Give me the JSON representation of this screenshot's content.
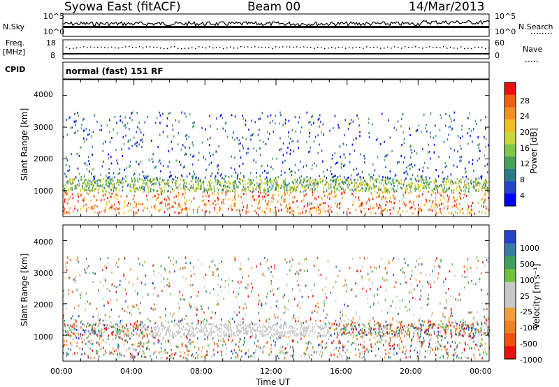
{
  "header": {
    "station": "Syowa East (fitACF)",
    "beam": "Beam 00",
    "date": "14/Mar/2013"
  },
  "strip_labels": {
    "nsky": "N.Sky",
    "nsearch": "N.Search",
    "freq": "Freq.",
    "freq_unit": "[MHz]",
    "nave": "Nave",
    "cpid": "CPID",
    "cpid_value": "normal (fast) 151 RF",
    "nsky_ticks": [
      "10^5",
      "10^0"
    ],
    "nsearch_ticks": [
      "10^5",
      "10^0"
    ],
    "freq_ticks": [
      "18",
      "8"
    ],
    "nave_ticks": [
      "60",
      "0"
    ]
  },
  "chart_data": [
    {
      "type": "heatmap",
      "name": "power",
      "ylabel": "Slant Range [km]",
      "yticks": [
        "4000",
        "3000",
        "2000",
        "1000"
      ],
      "ylim": [
        180,
        4500
      ],
      "xlim": [
        0,
        24
      ],
      "colorbar_label": "Power [dB]",
      "colorbar_ticks": [
        "28",
        "24",
        "20",
        "16",
        "12",
        "8",
        "4"
      ],
      "colorbar_colors": [
        "#0000ff",
        "#2244cc",
        "#2a7a8a",
        "#4aa05a",
        "#7ec850",
        "#c8d83a",
        "#f0c020",
        "#f59020",
        "#f06010",
        "#e81010"
      ]
    },
    {
      "type": "heatmap",
      "name": "velocity",
      "ylabel": "Slant Range [km]",
      "yticks": [
        "4000",
        "3000",
        "2000",
        "1000"
      ],
      "ylim": [
        180,
        4500
      ],
      "xlim": [
        0,
        24
      ],
      "xlabel": "Time UT",
      "xticks": [
        "00:00",
        "04:00",
        "08:00",
        "12:00",
        "16:00",
        "20:00",
        "00:00"
      ],
      "colorbar_label": "Velocity [m s⁻¹]",
      "colorbar_ticks": [
        "1000",
        "500",
        "100",
        "25",
        "-25",
        "-100",
        "-500",
        "-1000"
      ],
      "colorbar_colors": [
        "#e81010",
        "#f05010",
        "#f08020",
        "#f0a040",
        "#c8c8c8",
        "#c8c8c8",
        "#70c040",
        "#40a060",
        "#3a7aa0",
        "#2244cc"
      ]
    }
  ]
}
